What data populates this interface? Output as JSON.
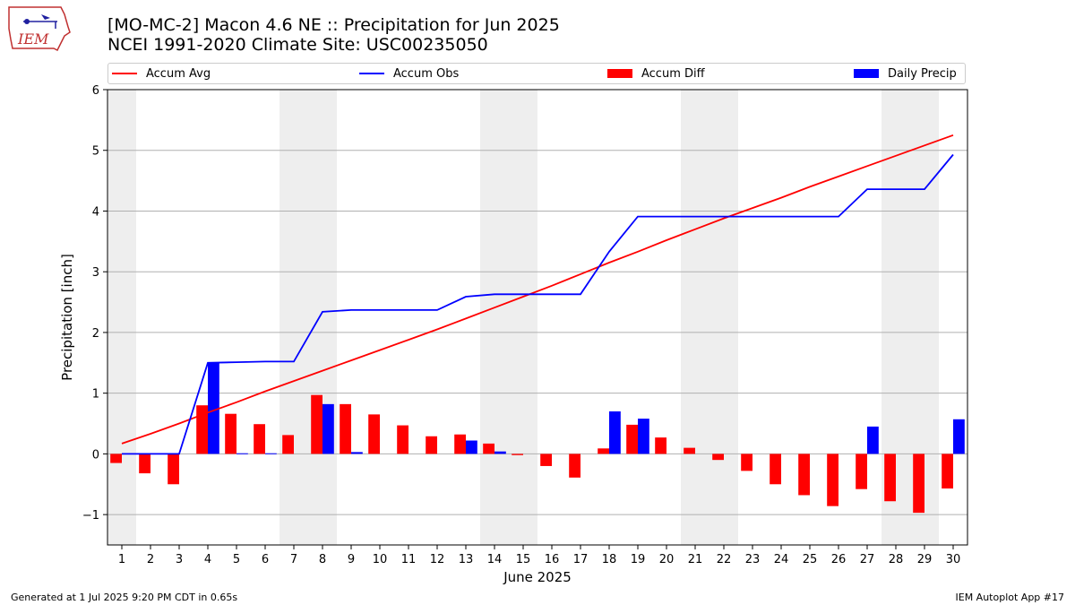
{
  "header": {
    "logo_text": "IEM",
    "title_line1": "[MO-MC-2] Macon 4.6 NE :: Precipitation for Jun 2025",
    "title_line2": "NCEI 1991-2020 Climate Site: USC00235050"
  },
  "footer": {
    "generated": "Generated at 1 Jul 2025 9:20 PM CDT in 0.65s",
    "app": "IEM Autoplot App #17"
  },
  "colors": {
    "avg": "#ff0000",
    "obs": "#0000ff",
    "diff": "#ff0000",
    "daily": "#0000ff",
    "weekend_shade": "#eeeeee",
    "grid": "#b0b0b0"
  },
  "chart_data": {
    "type": "bar",
    "xlabel": "June 2025",
    "ylabel": "Precipitation [inch]",
    "ylim": [
      -1.5,
      6
    ],
    "yticks": [
      -1,
      0,
      1,
      2,
      3,
      4,
      5,
      6
    ],
    "ytick_labels": [
      "−1",
      "0",
      "1",
      "2",
      "3",
      "4",
      "5",
      "6"
    ],
    "grid": "horizontal",
    "legend_placement": "top",
    "x": [
      1,
      2,
      3,
      4,
      5,
      6,
      7,
      8,
      9,
      10,
      11,
      12,
      13,
      14,
      15,
      16,
      17,
      18,
      19,
      20,
      21,
      22,
      23,
      24,
      25,
      26,
      27,
      28,
      29,
      30
    ],
    "weekend_days": [
      1,
      7,
      8,
      14,
      15,
      21,
      22,
      28,
      29
    ],
    "series": [
      {
        "name": "Accum Avg",
        "kind": "line",
        "values": [
          0.17,
          0.33,
          0.5,
          0.68,
          0.85,
          1.03,
          1.2,
          1.37,
          1.54,
          1.71,
          1.88,
          2.05,
          2.23,
          2.41,
          2.59,
          2.77,
          2.96,
          3.15,
          3.33,
          3.52,
          3.7,
          3.88,
          4.05,
          4.22,
          4.4,
          4.57,
          4.74,
          4.91,
          5.08,
          5.25
        ]
      },
      {
        "name": "Accum Obs",
        "kind": "line",
        "values": [
          0,
          0,
          0,
          1.5,
          1.51,
          1.52,
          1.52,
          2.34,
          2.37,
          2.37,
          2.37,
          2.37,
          2.59,
          2.63,
          2.63,
          2.63,
          2.63,
          3.33,
          3.91,
          3.91,
          3.91,
          3.91,
          3.91,
          3.91,
          3.91,
          3.91,
          4.36,
          4.36,
          4.36,
          4.93
        ]
      },
      {
        "name": "Accum Diff",
        "kind": "bar",
        "values": [
          -0.15,
          -0.32,
          -0.5,
          0.8,
          0.66,
          0.49,
          0.31,
          0.97,
          0.82,
          0.65,
          0.47,
          0.29,
          0.32,
          0.17,
          -0.02,
          -0.2,
          -0.39,
          0.09,
          0.48,
          0.27,
          0.1,
          -0.1,
          -0.28,
          -0.5,
          -0.68,
          -0.86,
          -0.58,
          -0.78,
          -0.97,
          -0.57
        ]
      },
      {
        "name": "Daily Precip",
        "kind": "bar",
        "values": [
          0,
          0,
          0,
          1.5,
          0.01,
          0.01,
          0,
          0.82,
          0.03,
          0,
          0,
          0,
          0.22,
          0.04,
          0,
          0,
          0,
          0.7,
          0.58,
          0,
          0,
          0,
          0,
          0,
          0,
          0,
          0.45,
          0,
          0,
          0.57
        ]
      }
    ]
  }
}
